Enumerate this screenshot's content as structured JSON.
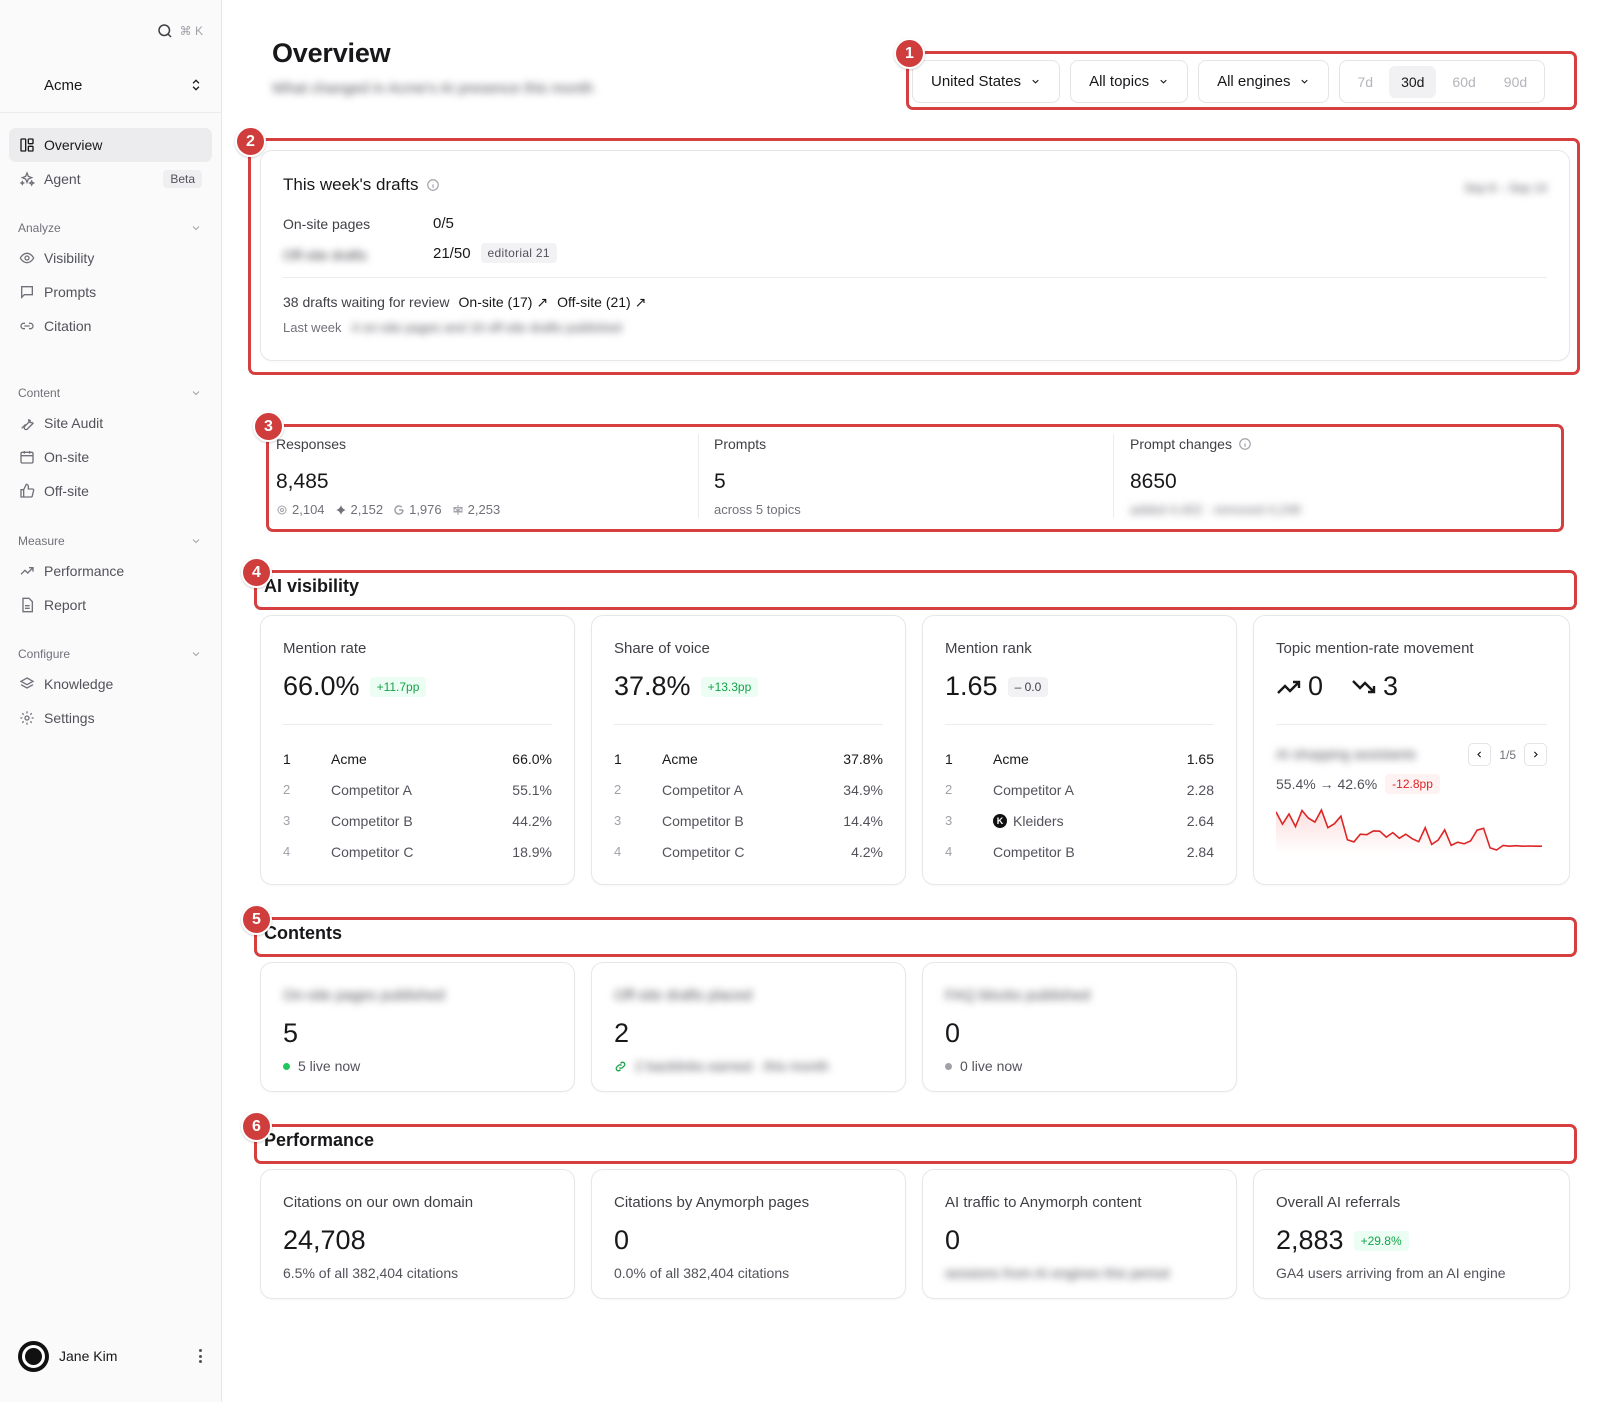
{
  "sidebar": {
    "search_shortcut": "⌘ K",
    "workspace": "Acme",
    "items_top": [
      {
        "label": "Overview",
        "icon": "layout-dashboard-icon",
        "active": true
      },
      {
        "label": "Agent",
        "icon": "sparkles-icon",
        "badge": "Beta"
      }
    ],
    "sections": [
      {
        "title": "Analyze",
        "items": [
          {
            "label": "Visibility",
            "icon": "eye-icon"
          },
          {
            "label": "Prompts",
            "icon": "message-square-icon"
          },
          {
            "label": "Citation",
            "icon": "link-icon"
          }
        ]
      },
      {
        "title": "Content",
        "items": [
          {
            "label": "Site Audit",
            "icon": "wrench-icon"
          },
          {
            "label": "On-site",
            "icon": "calendar-icon"
          },
          {
            "label": "Off-site",
            "icon": "thumbs-up-icon"
          }
        ]
      },
      {
        "title": "Measure",
        "items": [
          {
            "label": "Performance",
            "icon": "trending-up-icon"
          },
          {
            "label": "Report",
            "icon": "file-icon"
          }
        ]
      },
      {
        "title": "Configure",
        "items": [
          {
            "label": "Knowledge",
            "icon": "layers-icon"
          },
          {
            "label": "Settings",
            "icon": "gear-icon"
          }
        ]
      }
    ],
    "user": "Jane Kim"
  },
  "header": {
    "title": "Overview",
    "subtitle": "What changed in Acme's AI presence this month",
    "filters": {
      "country": "United States",
      "topics": "All topics",
      "engines": "All engines",
      "ranges": [
        "7d",
        "30d",
        "60d",
        "90d"
      ],
      "active_range": "30d"
    }
  },
  "drafts": {
    "title": "This week's drafts",
    "period": "Sep 8 – Sep 14",
    "onsite_label": "On-site pages",
    "onsite_value": "0/5",
    "offsite_label": "Off-site drafts",
    "offsite_value": "21/50",
    "offsite_chip": "editorial 21",
    "review_text": "38 drafts waiting for review",
    "onsite_link": "On-site (17) ↗",
    "offsite_link": "Off-site (21) ↗",
    "lastweek_label": "Last week",
    "lastweek_text": "4 on-site pages and 19 off-site drafts published"
  },
  "stats": {
    "responses": {
      "label": "Responses",
      "value": "8,485",
      "engines": [
        {
          "icon": "chatgpt-icon",
          "value": "2,104"
        },
        {
          "icon": "gemini-icon",
          "value": "2,152"
        },
        {
          "icon": "google-icon",
          "value": "1,976"
        },
        {
          "icon": "perplexity-icon",
          "value": "2,253"
        }
      ]
    },
    "prompts": {
      "label": "Prompts",
      "value": "5",
      "sub": "across 5 topics"
    },
    "changes": {
      "label": "Prompt changes",
      "value": "8650",
      "sub": "added 4,402 · removed 4,248"
    }
  },
  "ai_visibility": {
    "title": "AI visibility",
    "mention_rate": {
      "label": "Mention rate",
      "value": "66.0%",
      "delta": "+11.7pp",
      "rows": [
        {
          "rank": "1",
          "name": "Acme",
          "value": "66.0%"
        },
        {
          "rank": "2",
          "name": "Competitor A",
          "value": "55.1%"
        },
        {
          "rank": "3",
          "name": "Competitor B",
          "value": "44.2%"
        },
        {
          "rank": "4",
          "name": "Competitor C",
          "value": "18.9%"
        }
      ]
    },
    "share_of_voice": {
      "label": "Share of voice",
      "value": "37.8%",
      "delta": "+13.3pp",
      "rows": [
        {
          "rank": "1",
          "name": "Acme",
          "value": "37.8%"
        },
        {
          "rank": "2",
          "name": "Competitor A",
          "value": "34.9%"
        },
        {
          "rank": "3",
          "name": "Competitor B",
          "value": "14.4%"
        },
        {
          "rank": "4",
          "name": "Competitor C",
          "value": "4.2%"
        }
      ]
    },
    "mention_rank": {
      "label": "Mention rank",
      "value": "1.65",
      "delta": "– 0.0",
      "rows": [
        {
          "rank": "1",
          "name": "Acme",
          "value": "1.65"
        },
        {
          "rank": "2",
          "name": "Competitor A",
          "value": "2.28"
        },
        {
          "rank": "3",
          "name": "Kleiders",
          "value": "2.64",
          "logo": "K"
        },
        {
          "rank": "4",
          "name": "Competitor B",
          "value": "2.84"
        }
      ]
    },
    "topic_movement": {
      "label": "Topic mention-rate movement",
      "up": "0",
      "down": "3",
      "topic": "AI shopping assistants",
      "page": "1/5",
      "range": "55.4% → 42.6%",
      "delta": "-12.8pp",
      "trend": [
        55.4,
        50.8,
        54.6,
        49.9,
        55.9,
        53.1,
        51.6,
        56.1,
        49.5,
        51.0,
        53.8,
        45.0,
        44.2,
        47.1,
        46.9,
        48.3,
        48.2,
        46.0,
        47.7,
        45.6,
        47.1,
        45.4,
        44.3,
        49.5,
        43.3,
        44.9,
        48.7,
        42.9,
        44.1,
        43.5,
        44.6,
        48.6,
        49.3,
        42.0,
        41.2,
        42.9,
        42.6,
        42.8,
        42.6,
        42.7,
        42.6,
        42.6
      ],
      "color": "#dc2626"
    }
  },
  "contents": {
    "title": "Contents",
    "cards": [
      {
        "label": "On-site pages published",
        "value": "5",
        "sub": "5 live now",
        "dot": "#22c55e"
      },
      {
        "label": "Off-site drafts placed",
        "value": "2",
        "sub": "2 backlinks earned · this month",
        "icon": "link-icon"
      },
      {
        "label": "FAQ blocks published",
        "value": "0",
        "sub": "0 live now",
        "dot": "#a1a1aa"
      }
    ]
  },
  "performance": {
    "title": "Performance",
    "cards": [
      {
        "label": "Citations on our own domain",
        "value": "24,708",
        "sub": "6.5% of all 382,404 citations"
      },
      {
        "label": "Citations by Anymorph pages",
        "value": "0",
        "sub": "0.0% of all 382,404 citations"
      },
      {
        "label": "AI traffic to Anymorph content",
        "value": "0",
        "sub": "sessions from AI engines this period"
      },
      {
        "label": "Overall AI referrals",
        "value": "2,883",
        "delta": "+29.8%",
        "sub": "GA4 users arriving from an AI engine"
      }
    ]
  },
  "annotations": [
    "1",
    "2",
    "3",
    "4",
    "5",
    "6"
  ]
}
